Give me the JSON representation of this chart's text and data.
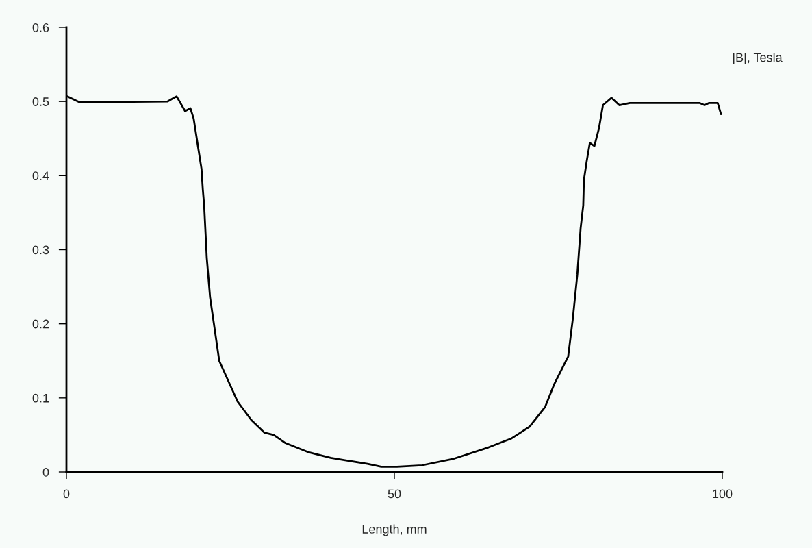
{
  "chart_data": {
    "type": "line",
    "xlabel": "Length, mm",
    "ylabel": "|B|, Tesla",
    "xlim": [
      0,
      100
    ],
    "xticks": [
      0,
      50,
      100
    ],
    "ylim": [
      0,
      0.6
    ],
    "yticks": [
      0,
      {
        "value": 0.1,
        "label": "0.1"
      },
      {
        "value": 0.2,
        "label": "0.2"
      },
      {
        "value": 0.3,
        "label": "0.3"
      },
      {
        "value": 0.4,
        "label": "0.4"
      },
      {
        "value": 0.5,
        "label": "0.5"
      },
      {
        "value": 0.6,
        "label": "0.6"
      }
    ],
    "grid": false,
    "series": [
      {
        "color": "#000000",
        "x": [
          0.1,
          2.0,
          15.4,
          16.8,
          18.1,
          18.9,
          19.4,
          20.1,
          20.6,
          20.8,
          21.0,
          21.4,
          21.9,
          23.3,
          26.1,
          28.2,
          30.2,
          31.6,
          33.4,
          36.8,
          40.3,
          45.9,
          48.0,
          50.4,
          54.2,
          59.1,
          64.3,
          67.8,
          70.6,
          73.0,
          74.4,
          76.5,
          77.2,
          77.9,
          78.4,
          78.8,
          78.9,
          79.3,
          79.8,
          80.5,
          81.2,
          81.8,
          83.1,
          84.3,
          85.9,
          96.5,
          97.3,
          98.0,
          99.3,
          99.8
        ],
        "values": [
          0.507,
          0.499,
          0.5,
          0.507,
          0.487,
          0.491,
          0.477,
          0.437,
          0.409,
          0.381,
          0.36,
          0.289,
          0.236,
          0.15,
          0.095,
          0.07,
          0.053,
          0.05,
          0.039,
          0.027,
          0.019,
          0.011,
          0.007,
          0.007,
          0.009,
          0.018,
          0.033,
          0.045,
          0.061,
          0.088,
          0.119,
          0.156,
          0.206,
          0.267,
          0.329,
          0.36,
          0.394,
          0.418,
          0.444,
          0.44,
          0.464,
          0.495,
          0.505,
          0.495,
          0.498,
          0.498,
          0.495,
          0.498,
          0.498,
          0.483
        ]
      }
    ]
  }
}
